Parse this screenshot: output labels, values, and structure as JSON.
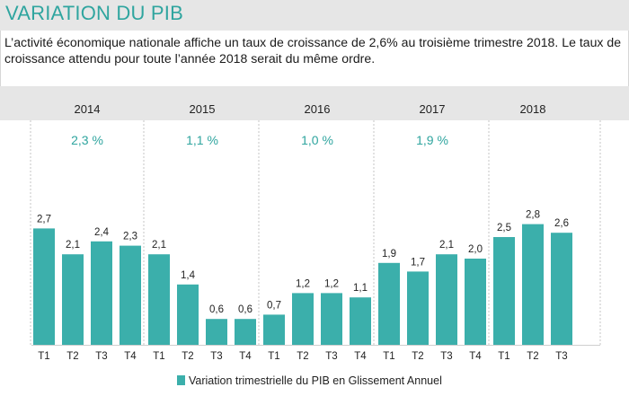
{
  "header": {
    "title": "VARIATION DU PIB",
    "description": "L’activité économique nationale affiche un taux de croissance de 2,6% au troisième trimestre 2018. Le taux de croissance attendu pour toute l’année 2018 serait du même ordre."
  },
  "colors": {
    "bar": "#3bafab",
    "accent_text": "#2fa59f",
    "band": "#e6e6e6",
    "separator": "#c4c4c4"
  },
  "chart_data": {
    "type": "bar",
    "years": [
      {
        "year": "2014",
        "annual": "2,3 %",
        "quarters": [
          "T1",
          "T2",
          "T3",
          "T4"
        ],
        "values": [
          2.7,
          2.1,
          2.4,
          2.3
        ],
        "labels": [
          "2,7",
          "2,1",
          "2,4",
          "2,3"
        ]
      },
      {
        "year": "2015",
        "annual": "1,1 %",
        "quarters": [
          "T1",
          "T2",
          "T3",
          "T4"
        ],
        "values": [
          2.1,
          1.4,
          0.6,
          0.6
        ],
        "labels": [
          "2,1",
          "1,4",
          "0,6",
          "0,6"
        ]
      },
      {
        "year": "2016",
        "annual": "1,0 %",
        "quarters": [
          "T1",
          "T2",
          "T3",
          "T4"
        ],
        "values": [
          0.7,
          1.2,
          1.2,
          1.1
        ],
        "labels": [
          "0,7",
          "1,2",
          "1,2",
          "1,1"
        ]
      },
      {
        "year": "2017",
        "annual": "1,9 %",
        "quarters": [
          "T1",
          "T2",
          "T3",
          "T4"
        ],
        "values": [
          1.9,
          1.7,
          2.1,
          2.0
        ],
        "labels": [
          "1,9",
          "1,7",
          "2,1",
          "2,0"
        ]
      },
      {
        "year": "2018",
        "annual": "",
        "quarters": [
          "T1",
          "T2",
          "T3"
        ],
        "values": [
          2.5,
          2.8,
          2.6
        ],
        "labels": [
          "2,5",
          "2,8",
          "2,6"
        ]
      }
    ],
    "ylim": [
      0,
      3.0
    ],
    "legend": "Variation trimestrielle du PIB en Glissement Annuel",
    "legend_position": "bottom"
  }
}
